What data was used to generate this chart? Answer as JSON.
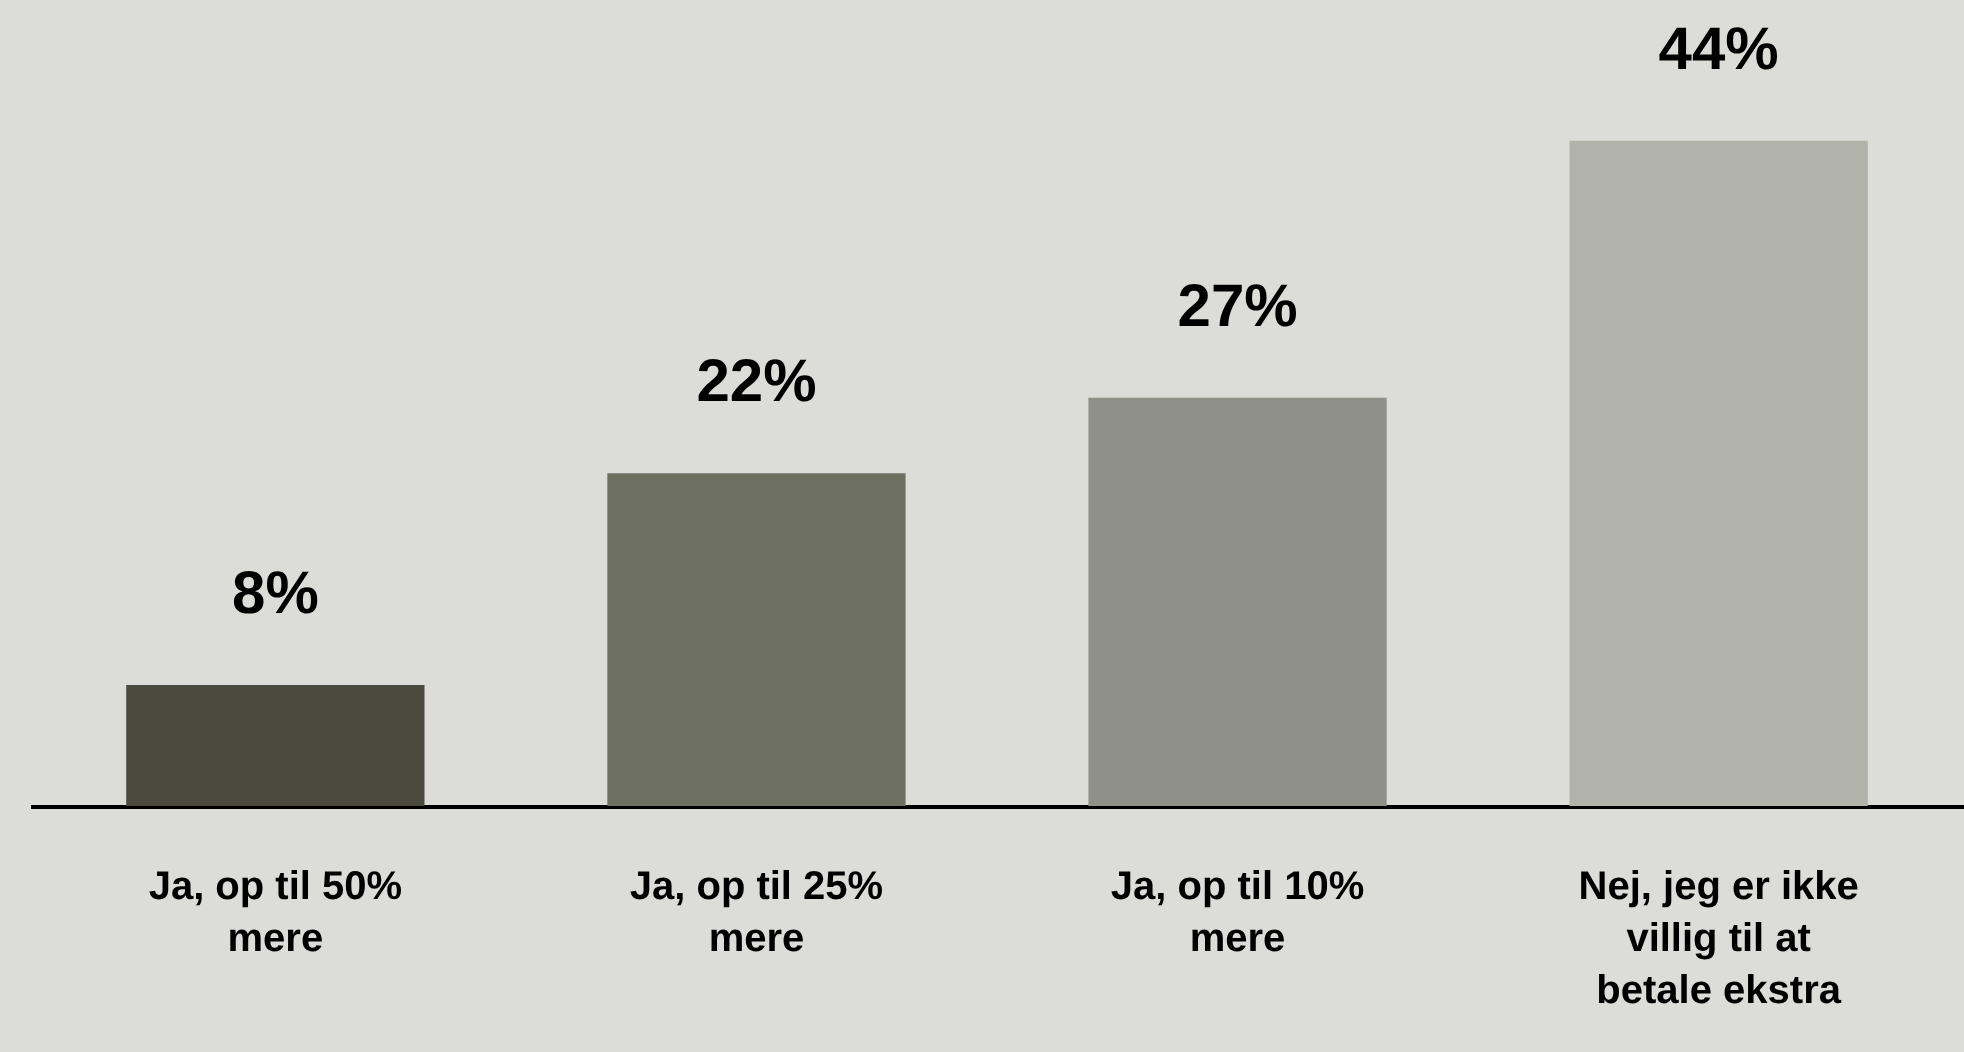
{
  "chart_data": {
    "type": "bar",
    "categories": [
      "Ja, op til 50% mere",
      "Ja, op til 25% mere",
      "Ja, op til 10% mere",
      "Nej, jeg er ikke villig til at betale ekstra"
    ],
    "values": [
      8,
      22,
      27,
      44
    ],
    "colors": [
      "#4a4b3c",
      "#6e7062",
      "#8f9087",
      "#b1b2aa"
    ],
    "value_labels": [
      "8%",
      "22%",
      "27%",
      "44%"
    ],
    "tick_labels": "x",
    "legend": false
  }
}
